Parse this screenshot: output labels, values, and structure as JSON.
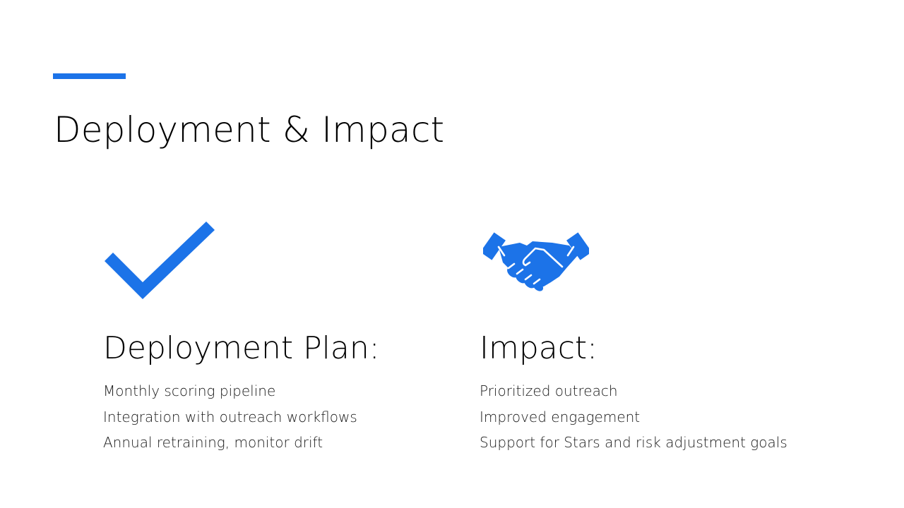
{
  "slide": {
    "title": "Deployment & Impact",
    "accent_color": "#1c73e8"
  },
  "left": {
    "icon": "checkmark-icon",
    "heading": "Deployment Plan:",
    "items": [
      "Monthly scoring pipeline",
      "Integration with outreach workflows",
      "Annual retraining, monitor drift"
    ]
  },
  "right": {
    "icon": "handshake-icon",
    "heading": "Impact:",
    "items": [
      "Prioritized outreach",
      "Improved engagement",
      "Support for Stars and risk adjustment goals"
    ]
  }
}
